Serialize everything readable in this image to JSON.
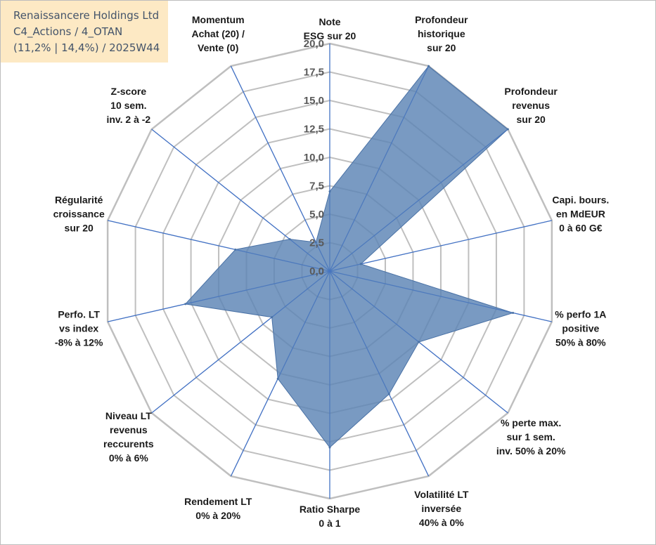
{
  "info_box": {
    "line1": "Renaissancere Holdings Ltd",
    "line2": "C4_Actions / 4_OTAN",
    "line3": "(11,2% | 14,4%) / 2025W44"
  },
  "colors": {
    "fill": "#5b84b4",
    "fill_stroke": "#4a72a6",
    "spoke": "#4472c4",
    "grid": "#bfbfbf",
    "info_bg": "#fde9c4",
    "info_text": "#44546a"
  },
  "chart_data": {
    "type": "radar",
    "rmin": 0,
    "rmax": 20,
    "step": 2.5,
    "tick_labels": [
      "0,0",
      "2,5",
      "5,0",
      "7,5",
      "10,0",
      "12,5",
      "15,0",
      "17,5",
      "20,0"
    ],
    "axes": [
      {
        "lines": [
          "Note",
          "ESG sur 20"
        ]
      },
      {
        "lines": [
          "Profondeur",
          "historique",
          "sur 20"
        ]
      },
      {
        "lines": [
          "Profondeur",
          "revenus",
          "sur 20"
        ]
      },
      {
        "lines": [
          "Capi. bours.",
          "en MdEUR",
          "0 à 60 G€"
        ]
      },
      {
        "lines": [
          "% perfo 1A",
          "positive",
          "50% à 80%"
        ]
      },
      {
        "lines": [
          "% perte max.",
          "sur 1 sem.",
          "inv. 50% à 20%"
        ]
      },
      {
        "lines": [
          "Volatilité LT",
          "inversée",
          "40% à 0%"
        ]
      },
      {
        "lines": [
          "Ratio Sharpe",
          "0 à 1"
        ]
      },
      {
        "lines": [
          "Rendement LT",
          "0% à 20%"
        ]
      },
      {
        "lines": [
          "Niveau LT",
          "revenus",
          "reccurents",
          "0% à 6%"
        ]
      },
      {
        "lines": [
          "Perfo. LT",
          "vs index",
          "-8% à 12%"
        ]
      },
      {
        "lines": [
          "Régularité",
          "croissance",
          "sur 20"
        ]
      },
      {
        "lines": [
          "Z-score",
          "10 sem.",
          "inv. 2 à -2"
        ]
      },
      {
        "lines": [
          "Momentum",
          "Achat (20) /",
          "Vente (0)"
        ]
      }
    ],
    "values": [
      7.0,
      20.0,
      20.0,
      2.8,
      16.5,
      10.0,
      12.0,
      15.5,
      10.5,
      6.5,
      13.0,
      8.5,
      4.5,
      2.8
    ],
    "grid": true,
    "legend": "none"
  }
}
